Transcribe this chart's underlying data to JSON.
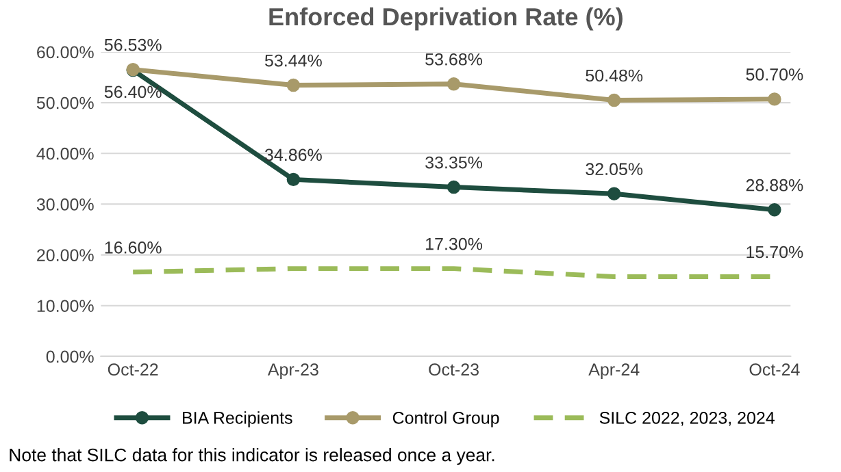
{
  "chart_data": {
    "type": "line",
    "title": "Enforced Deprivation Rate (%)",
    "categories": [
      "Oct-22",
      "Apr-23",
      "Oct-23",
      "Apr-24",
      "Oct-24"
    ],
    "series": [
      {
        "name": "BIA Recipients",
        "color": "#1e4d3f",
        "values": [
          56.4,
          34.86,
          33.35,
          32.05,
          28.88
        ],
        "marker": "circle",
        "line_style": "solid",
        "value_labels": [
          "56.40%",
          "34.86%",
          "33.35%",
          "32.05%",
          "28.88%"
        ]
      },
      {
        "name": "Control Group",
        "color": "#a89a6a",
        "values": [
          56.53,
          53.44,
          53.68,
          50.48,
          50.7
        ],
        "marker": "circle",
        "line_style": "solid",
        "value_labels": [
          "56.53%",
          "53.44%",
          "53.68%",
          "50.48%",
          "50.70%"
        ]
      },
      {
        "name": "SILC 2022, 2023, 2024",
        "color": "#9bbb59",
        "values": [
          16.6,
          17.3,
          17.3,
          15.7,
          15.7
        ],
        "marker": "none",
        "line_style": "dashed",
        "value_labels": [
          "16.60%",
          null,
          "17.30%",
          null,
          "15.70%"
        ]
      }
    ],
    "ylim": [
      0,
      60
    ],
    "yticks": [
      {
        "value": 0,
        "label": "0.00%"
      },
      {
        "value": 10,
        "label": "10.00%"
      },
      {
        "value": 20,
        "label": "20.00%"
      },
      {
        "value": 30,
        "label": "30.00%"
      },
      {
        "value": 40,
        "label": "40.00%"
      },
      {
        "value": 50,
        "label": "50.00%"
      },
      {
        "value": 60,
        "label": "60.00%"
      }
    ],
    "grid": "y",
    "legend": "bottom",
    "annotations": [
      "Note that SILC data for this indicator is released once a year."
    ]
  }
}
